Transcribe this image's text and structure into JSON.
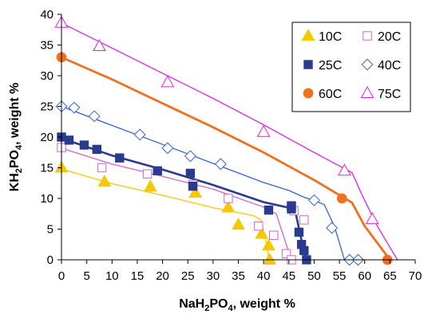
{
  "chart_data": {
    "type": "scatter",
    "xlabel_main": "NaH",
    "xlabel_sub1": "2",
    "xlabel_mid": "PO",
    "xlabel_sub2": "4",
    "xlabel_tail": ", weight %",
    "ylabel_main": "KH",
    "ylabel_sub1": "2",
    "ylabel_mid": "PO",
    "ylabel_sub2": "4",
    "ylabel_tail": ", weight %",
    "xlim": [
      0,
      70
    ],
    "ylim": [
      0,
      40
    ],
    "xticks": [
      0,
      5,
      10,
      15,
      20,
      25,
      30,
      35,
      40,
      45,
      50,
      55,
      60,
      65,
      70
    ],
    "yticks": [
      0,
      5,
      10,
      15,
      20,
      25,
      30,
      35,
      40
    ],
    "grid": false,
    "legend_position": "top-right",
    "series": [
      {
        "name": "10C",
        "marker": "triangle-filled",
        "color": "#f5c800",
        "points": [
          [
            0.0,
            15.0
          ],
          [
            8.5,
            12.7
          ],
          [
            17.6,
            11.9
          ],
          [
            26.5,
            10.9
          ],
          [
            33.0,
            8.5
          ],
          [
            35.0,
            5.7
          ],
          [
            39.6,
            4.2
          ],
          [
            41.0,
            2.3
          ],
          [
            41.2,
            0.0
          ]
        ],
        "curve": [
          [
            0.0,
            14.8
          ],
          [
            10.0,
            12.4
          ],
          [
            20.0,
            10.5
          ],
          [
            30.0,
            8.5
          ],
          [
            38.0,
            7.2
          ],
          [
            39.5,
            6.5
          ],
          [
            40.7,
            2.0
          ],
          [
            41.0,
            0.0
          ]
        ]
      },
      {
        "name": "20C",
        "marker": "square-open",
        "color": "#cc66cc",
        "points": [
          [
            0.0,
            18.3
          ],
          [
            8.0,
            15.0
          ],
          [
            17.0,
            14.0
          ],
          [
            26.0,
            12.3
          ],
          [
            33.0,
            10.0
          ],
          [
            39.0,
            5.5
          ],
          [
            42.0,
            4.0
          ],
          [
            44.5,
            1.0
          ],
          [
            45.5,
            0.0
          ],
          [
            48.0,
            6.5
          ],
          [
            46.0,
            8.0
          ]
        ],
        "curve": [
          [
            0.0,
            18.2
          ],
          [
            10.0,
            15.6
          ],
          [
            20.0,
            13.6
          ],
          [
            30.0,
            11.5
          ],
          [
            40.0,
            8.6
          ],
          [
            42.5,
            7.5
          ],
          [
            44.5,
            2.5
          ],
          [
            45.5,
            0.0
          ]
        ]
      },
      {
        "name": "25C",
        "marker": "square-filled",
        "color": "#2a3a8c",
        "points": [
          [
            0.0,
            20.0
          ],
          [
            1.5,
            19.5
          ],
          [
            4.5,
            18.7
          ],
          [
            7.0,
            18.0
          ],
          [
            11.5,
            16.6
          ],
          [
            19.0,
            14.5
          ],
          [
            25.5,
            14.1
          ],
          [
            26.0,
            12.0
          ],
          [
            41.0,
            8.1
          ],
          [
            45.5,
            8.8
          ],
          [
            47.0,
            4.5
          ],
          [
            47.5,
            2.5
          ],
          [
            48.0,
            1.5
          ],
          [
            48.5,
            0.0
          ],
          [
            45.5,
            8.3
          ]
        ],
        "curve": [
          [
            0.0,
            19.8
          ],
          [
            10.0,
            17.0
          ],
          [
            20.0,
            14.7
          ],
          [
            30.0,
            12.2
          ],
          [
            40.0,
            9.4
          ],
          [
            45.0,
            8.5
          ],
          [
            46.2,
            8.2
          ],
          [
            47.8,
            2.0
          ],
          [
            48.5,
            0.0
          ]
        ]
      },
      {
        "name": "40C",
        "marker": "diamond-open",
        "color": "#3366cc",
        "points": [
          [
            0.0,
            25.0
          ],
          [
            2.5,
            24.8
          ],
          [
            6.5,
            23.4
          ],
          [
            15.5,
            20.4
          ],
          [
            21.0,
            18.2
          ],
          [
            25.5,
            16.9
          ],
          [
            31.5,
            15.6
          ],
          [
            50.0,
            9.7
          ],
          [
            53.5,
            5.2
          ],
          [
            57.0,
            0.0
          ],
          [
            58.7,
            0.0
          ]
        ],
        "curve": [
          [
            0.0,
            25.0
          ],
          [
            10.0,
            21.9
          ],
          [
            20.0,
            18.8
          ],
          [
            30.0,
            15.7
          ],
          [
            40.0,
            12.6
          ],
          [
            45.0,
            11.3
          ],
          [
            48.0,
            10.2
          ],
          [
            50.5,
            9.5
          ],
          [
            52.0,
            9.0
          ],
          [
            54.0,
            5.5
          ],
          [
            56.0,
            0.0
          ]
        ]
      },
      {
        "name": "60C",
        "marker": "circle-filled",
        "color": "#f07020",
        "points": [
          [
            0.0,
            33.0
          ],
          [
            55.5,
            10.0
          ],
          [
            64.5,
            0.0
          ]
        ],
        "curve": [
          [
            0.0,
            33.0
          ],
          [
            10.0,
            29.4
          ],
          [
            20.0,
            25.5
          ],
          [
            30.0,
            21.6
          ],
          [
            40.0,
            17.5
          ],
          [
            50.0,
            13.0
          ],
          [
            55.5,
            10.3
          ],
          [
            57.5,
            9.3
          ],
          [
            60.0,
            5.5
          ],
          [
            65.0,
            0.0
          ]
        ]
      },
      {
        "name": "75C",
        "marker": "triangle-open",
        "color": "#e020e0",
        "points": [
          [
            0.0,
            38.6
          ],
          [
            7.5,
            34.8
          ],
          [
            21.0,
            28.9
          ],
          [
            40.0,
            20.8
          ],
          [
            56.0,
            14.5
          ],
          [
            61.5,
            6.6
          ]
        ],
        "curve": [
          [
            0.0,
            38.6
          ],
          [
            10.0,
            34.5
          ],
          [
            20.0,
            30.4
          ],
          [
            30.0,
            26.3
          ],
          [
            40.0,
            22.0
          ],
          [
            50.0,
            17.5
          ],
          [
            55.0,
            15.3
          ],
          [
            57.5,
            14.2
          ],
          [
            59.5,
            10.5
          ],
          [
            62.5,
            5.5
          ],
          [
            65.0,
            2.0
          ],
          [
            66.5,
            0.0
          ]
        ]
      }
    ]
  }
}
